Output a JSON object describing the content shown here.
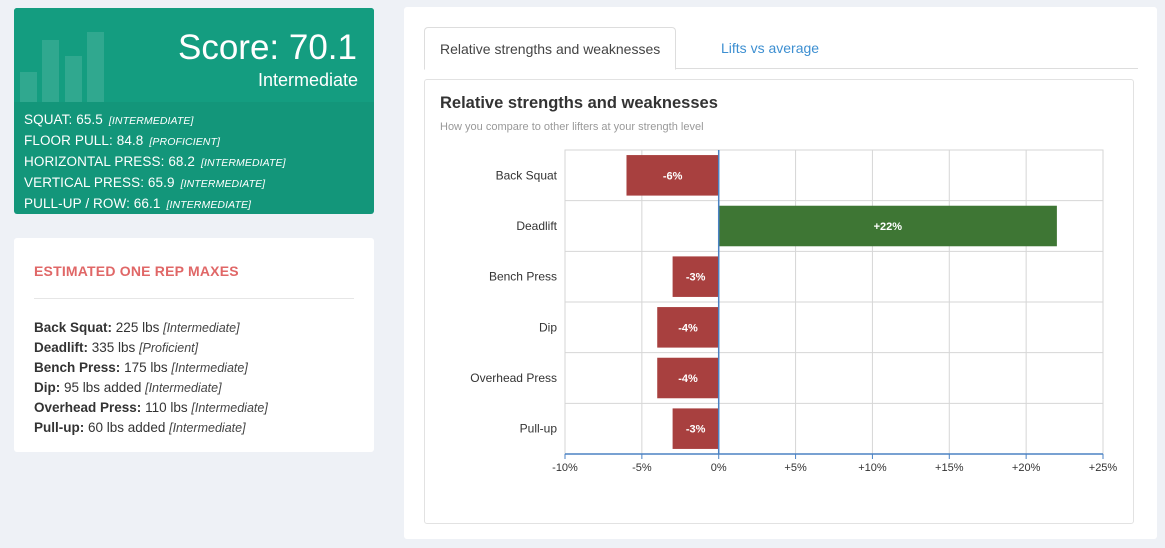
{
  "score_card": {
    "score_label": "Score: 70.1",
    "level": "Intermediate",
    "rows": [
      {
        "label": "SQUAT: 65.5",
        "tag": "[INTERMEDIATE]"
      },
      {
        "label": "FLOOR PULL: 84.8",
        "tag": "[PROFICIENT]"
      },
      {
        "label": "HORIZONTAL PRESS: 68.2",
        "tag": "[INTERMEDIATE]"
      },
      {
        "label": "VERTICAL PRESS: 65.9",
        "tag": "[INTERMEDIATE]"
      },
      {
        "label": "PULL-UP / ROW: 66.1",
        "tag": "[INTERMEDIATE]"
      }
    ],
    "colors": {
      "card": "#13967a",
      "text": "#ffffff"
    }
  },
  "orm_card": {
    "title": "ESTIMATED ONE REP MAXES",
    "rows": [
      {
        "lift": "Back Squat:",
        "value": "225 lbs",
        "tag": "[Intermediate]"
      },
      {
        "lift": "Deadlift:",
        "value": "335 lbs",
        "tag": "[Proficient]"
      },
      {
        "lift": "Bench Press:",
        "value": "175 lbs",
        "tag": "[Intermediate]"
      },
      {
        "lift": "Dip:",
        "value": "95 lbs added",
        "tag": "[Intermediate]"
      },
      {
        "lift": "Overhead Press:",
        "value": "110 lbs",
        "tag": "[Intermediate]"
      },
      {
        "lift": "Pull-up:",
        "value": "60 lbs added",
        "tag": "[Intermediate]"
      }
    ],
    "colors": {
      "title": "#e06767"
    }
  },
  "tabs": [
    {
      "label": "Relative strengths and weaknesses",
      "active": true
    },
    {
      "label": "Lifts vs average",
      "active": false
    }
  ],
  "chart_data": {
    "type": "bar",
    "orientation": "horizontal",
    "title": "Relative strengths and weaknesses",
    "subtitle": "How you compare to other lifters at your strength level",
    "categories": [
      "Back Squat",
      "Deadlift",
      "Bench Press",
      "Dip",
      "Overhead Press",
      "Pull-up"
    ],
    "values": [
      -6,
      22,
      -3,
      -4,
      -4,
      -3
    ],
    "data_labels": [
      "-6%",
      "+22%",
      "-3%",
      "-4%",
      "-4%",
      "-3%"
    ],
    "xlim": [
      -10,
      25
    ],
    "xticks": [
      -10,
      -5,
      0,
      5,
      10,
      15,
      20,
      25
    ],
    "xtick_labels": [
      "-10%",
      "-5%",
      "0%",
      "+5%",
      "+10%",
      "+15%",
      "+20%",
      "+25%"
    ],
    "grid": true,
    "colors": {
      "positive": "#3e7634",
      "negative": "#a8403f",
      "axis": "#4b82c3",
      "grid": "#d6d6d6"
    }
  }
}
